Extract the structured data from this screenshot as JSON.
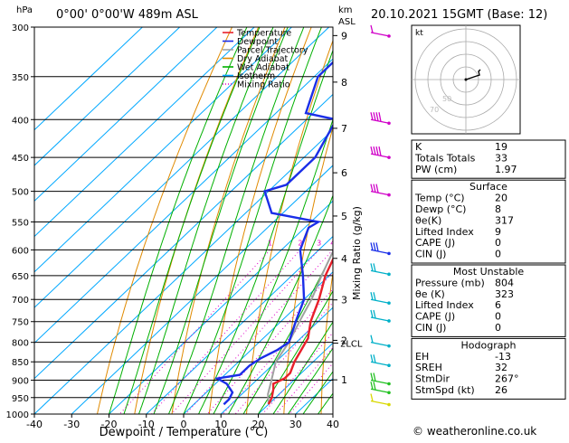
{
  "header": {
    "location": "0°00' 0°00'W 489m ASL",
    "datetime": "20.10.2021 15GMT (Base: 12)",
    "hpa_label": "hPa",
    "km_label": "km",
    "asl_label": "ASL",
    "mixing_axis_label": "Mixing Ratio (g/kg)",
    "lcl_label": "LCL",
    "footer": "© weatheronline.co.uk"
  },
  "colors": {
    "temperature": "#e8202a",
    "dewpoint": "#1a2ee8",
    "parcel": "#a0a0a0",
    "dry_adiabat": "#e08a00",
    "wet_adiabat": "#00b000",
    "isotherm": "#00a8ff",
    "mixing": "#e000c8",
    "wind_top": "#d000c8",
    "wind_mid": "#00b0c8",
    "wind_low": "#20c020",
    "wind_sfc": "#d8d800"
  },
  "chart_data": {
    "type": "skew-t",
    "xlabel": "Dewpoint / Temperature (°C)",
    "ylabel": "hPa",
    "x_ticks": [
      -40,
      -30,
      -20,
      -10,
      0,
      10,
      20,
      30,
      40
    ],
    "pressure_ticks": [
      300,
      350,
      400,
      450,
      500,
      550,
      600,
      650,
      700,
      750,
      800,
      850,
      900,
      950,
      1000
    ],
    "km_ticks": [
      {
        "label": "9",
        "p": 308
      },
      {
        "label": "8",
        "p": 356
      },
      {
        "label": "7",
        "p": 411
      },
      {
        "label": "6",
        "p": 472
      },
      {
        "label": "5",
        "p": 540
      },
      {
        "label": "4",
        "p": 616
      },
      {
        "label": "3",
        "p": 701
      },
      {
        "label": "2",
        "p": 795
      },
      {
        "label": "1",
        "p": 899
      }
    ],
    "mixing_ratio_labels": [
      "1",
      "2",
      "3",
      "4",
      "6",
      "8",
      "10",
      "16",
      "20",
      "25"
    ],
    "mixing_ratio_values": [
      1,
      2,
      3,
      4,
      6,
      8,
      10,
      16,
      20,
      25
    ],
    "legend": [
      {
        "name": "Temperature",
        "color": "#e8202a",
        "style": "solid"
      },
      {
        "name": "Dewpoint",
        "color": "#1a2ee8",
        "style": "solid"
      },
      {
        "name": "Parcel Trajectory",
        "color": "#a0a0a0",
        "style": "solid"
      },
      {
        "name": "Dry Adiabat",
        "color": "#e08a00",
        "style": "solid"
      },
      {
        "name": "Wet Adiabat",
        "color": "#00b000",
        "style": "solid"
      },
      {
        "name": "Isotherm",
        "color": "#00a8ff",
        "style": "solid"
      },
      {
        "name": "Mixing Ratio",
        "color": "#e000c8",
        "style": "dotted"
      }
    ],
    "temperature": [
      {
        "p": 970,
        "t": 20
      },
      {
        "p": 950,
        "t": 19
      },
      {
        "p": 925,
        "t": 17
      },
      {
        "p": 910,
        "t": 15.5
      },
      {
        "p": 895,
        "t": 17
      },
      {
        "p": 880,
        "t": 17
      },
      {
        "p": 850,
        "t": 15
      },
      {
        "p": 810,
        "t": 13
      },
      {
        "p": 790,
        "t": 12
      },
      {
        "p": 750,
        "t": 8
      },
      {
        "p": 700,
        "t": 4
      },
      {
        "p": 650,
        "t": -1
      },
      {
        "p": 600,
        "t": -5
      },
      {
        "p": 550,
        "t": -10
      },
      {
        "p": 530,
        "t": -11
      },
      {
        "p": 500,
        "t": -14
      },
      {
        "p": 450,
        "t": -21
      },
      {
        "p": 400,
        "t": -30
      },
      {
        "p": 350,
        "t": -38
      },
      {
        "p": 300,
        "t": -48
      }
    ],
    "dewpoint": [
      {
        "p": 970,
        "t": 8
      },
      {
        "p": 955,
        "t": 8
      },
      {
        "p": 935,
        "t": 7
      },
      {
        "p": 910,
        "t": 3
      },
      {
        "p": 895,
        "t": -1
      },
      {
        "p": 885,
        "t": 4
      },
      {
        "p": 860,
        "t": 4
      },
      {
        "p": 840,
        "t": 5
      },
      {
        "p": 820,
        "t": 7
      },
      {
        "p": 800,
        "t": 8
      },
      {
        "p": 750,
        "t": 4
      },
      {
        "p": 700,
        "t": 0
      },
      {
        "p": 650,
        "t": -7
      },
      {
        "p": 600,
        "t": -15
      },
      {
        "p": 560,
        "t": -19
      },
      {
        "p": 550,
        "t": -18
      },
      {
        "p": 535,
        "t": -33
      },
      {
        "p": 500,
        "t": -41
      },
      {
        "p": 490,
        "t": -37
      },
      {
        "p": 450,
        "t": -37
      },
      {
        "p": 400,
        "t": -42
      },
      {
        "p": 392,
        "t": -52
      },
      {
        "p": 350,
        "t": -59
      },
      {
        "p": 335,
        "t": -59
      },
      {
        "p": 325,
        "t": -52
      },
      {
        "p": 312,
        "t": -48
      },
      {
        "p": 306,
        "t": -55
      },
      {
        "p": 300,
        "t": -51
      }
    ],
    "parcel": [
      {
        "p": 970,
        "t": 20
      },
      {
        "p": 940,
        "t": 17
      },
      {
        "p": 900,
        "t": 14
      },
      {
        "p": 850,
        "t": 10
      },
      {
        "p": 800,
        "t": 8
      },
      {
        "p": 750,
        "t": 5
      },
      {
        "p": 700,
        "t": 2
      },
      {
        "p": 650,
        "t": -2
      },
      {
        "p": 600,
        "t": -6
      },
      {
        "p": 550,
        "t": -11
      },
      {
        "p": 500,
        "t": -16
      },
      {
        "p": 450,
        "t": -22
      },
      {
        "p": 400,
        "t": -29
      },
      {
        "p": 350,
        "t": -37
      },
      {
        "p": 300,
        "t": -46
      }
    ],
    "lcl_p": 802,
    "wind_barbs": [
      {
        "p": 305,
        "color": "#d000c8",
        "flags": 1
      },
      {
        "p": 400,
        "color": "#d000c8",
        "flags": 4
      },
      {
        "p": 445,
        "color": "#d000c8",
        "flags": 4
      },
      {
        "p": 500,
        "color": "#d000c8",
        "flags": 3
      },
      {
        "p": 600,
        "color": "#1a2ee8",
        "flags": 3
      },
      {
        "p": 640,
        "color": "#00b0c8",
        "flags": 2
      },
      {
        "p": 700,
        "color": "#00b0c8",
        "flags": 2
      },
      {
        "p": 740,
        "color": "#00b0c8",
        "flags": 2
      },
      {
        "p": 800,
        "color": "#00b0c8",
        "flags": 1
      },
      {
        "p": 850,
        "color": "#00b0c8",
        "flags": 2
      },
      {
        "p": 900,
        "color": "#20c020",
        "flags": 2
      },
      {
        "p": 925,
        "color": "#20c020",
        "flags": 2
      },
      {
        "p": 960,
        "color": "#d8d800",
        "flags": 1
      }
    ]
  },
  "hodograph": {
    "unit_label": "kt",
    "ring_labels": [
      "70",
      "50"
    ],
    "trace": [
      [
        0,
        0
      ],
      [
        6,
        2
      ],
      [
        12,
        4
      ],
      [
        15,
        5
      ],
      [
        14,
        9
      ],
      [
        16,
        11
      ]
    ]
  },
  "indices": {
    "rows": [
      {
        "label": "K",
        "value": "19"
      },
      {
        "label": "Totals Totals",
        "value": "33"
      },
      {
        "label": "PW (cm)",
        "value": "1.97"
      }
    ]
  },
  "surface": {
    "title": "Surface",
    "rows": [
      {
        "label": "Temp (°C)",
        "value": "20"
      },
      {
        "label": "Dewp (°C)",
        "value": "8"
      },
      {
        "label": "θe(K)",
        "value": "317"
      },
      {
        "label": "Lifted Index",
        "value": "9"
      },
      {
        "label": "CAPE (J)",
        "value": "0"
      },
      {
        "label": "CIN (J)",
        "value": "0"
      }
    ]
  },
  "unstable": {
    "title": "Most Unstable",
    "rows": [
      {
        "label": "Pressure (mb)",
        "value": "804"
      },
      {
        "label": "θe (K)",
        "value": "323"
      },
      {
        "label": "Lifted Index",
        "value": "6"
      },
      {
        "label": "CAPE (J)",
        "value": "0"
      },
      {
        "label": "CIN (J)",
        "value": "0"
      }
    ]
  },
  "hodo_table": {
    "title": "Hodograph",
    "rows": [
      {
        "label": "EH",
        "value": "-13"
      },
      {
        "label": "SREH",
        "value": "32"
      },
      {
        "label": "StmDir",
        "value": "267°"
      },
      {
        "label": "StmSpd (kt)",
        "value": "26"
      }
    ]
  }
}
